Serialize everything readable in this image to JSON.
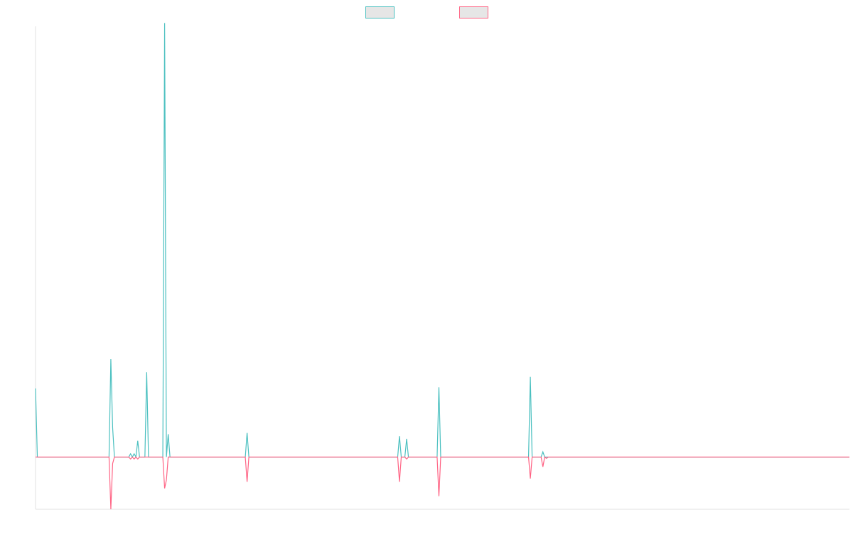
{
  "chart_data": {
    "type": "line",
    "title": "",
    "xlabel": "",
    "ylabel": "",
    "x_count": 228,
    "ylim": [
      -0.8,
      6.6
    ],
    "grid": false,
    "legend": {
      "position": "top-center"
    },
    "colors": {
      "axis": "#e0e0e0",
      "legend_fill": "#e6e6e6"
    },
    "series": [
      {
        "color": "#4bc0c0",
        "points": [
          [
            0,
            1.05
          ],
          [
            0.5,
            0
          ],
          [
            20.5,
            0
          ],
          [
            21,
            1.5
          ],
          [
            21.5,
            0.45
          ],
          [
            22,
            0
          ],
          [
            26,
            0
          ],
          [
            26.5,
            0.05
          ],
          [
            27,
            0
          ],
          [
            27.5,
            0.05
          ],
          [
            28,
            0
          ],
          [
            28.5,
            0.25
          ],
          [
            29,
            0
          ],
          [
            30.5,
            0
          ],
          [
            31,
            1.3
          ],
          [
            31.5,
            0
          ],
          [
            35.5,
            0
          ],
          [
            36,
            6.65
          ],
          [
            36.5,
            0
          ],
          [
            37,
            0.35
          ],
          [
            37.5,
            0
          ],
          [
            58.5,
            0
          ],
          [
            59,
            0.37
          ],
          [
            59.5,
            0
          ],
          [
            101,
            0
          ],
          [
            101.5,
            0.32
          ],
          [
            102,
            0
          ],
          [
            103,
            0
          ],
          [
            103.5,
            0.28
          ],
          [
            104,
            0
          ],
          [
            112,
            0
          ],
          [
            112.5,
            1.07
          ],
          [
            113,
            0
          ],
          [
            137.5,
            0
          ],
          [
            138,
            1.23
          ],
          [
            138.5,
            0
          ],
          [
            141,
            0
          ],
          [
            141.5,
            0.08
          ],
          [
            142,
            0
          ],
          [
            227,
            0
          ]
        ]
      },
      {
        "color": "#ff6384",
        "points": [
          [
            0,
            0
          ],
          [
            20.5,
            0
          ],
          [
            21,
            -0.8
          ],
          [
            21.5,
            -0.1
          ],
          [
            22,
            0
          ],
          [
            26,
            0
          ],
          [
            26.5,
            -0.03
          ],
          [
            27,
            0
          ],
          [
            27.5,
            -0.03
          ],
          [
            28,
            0
          ],
          [
            28.5,
            -0.03
          ],
          [
            29,
            0
          ],
          [
            35.5,
            0
          ],
          [
            36,
            -0.48
          ],
          [
            36.5,
            -0.35
          ],
          [
            37,
            0
          ],
          [
            58.5,
            0
          ],
          [
            59,
            -0.38
          ],
          [
            59.5,
            0
          ],
          [
            101,
            0
          ],
          [
            101.5,
            -0.38
          ],
          [
            102,
            0
          ],
          [
            103,
            0
          ],
          [
            103.5,
            -0.03
          ],
          [
            104,
            0
          ],
          [
            112,
            0
          ],
          [
            112.5,
            -0.6
          ],
          [
            113,
            0
          ],
          [
            137.5,
            0
          ],
          [
            138,
            -0.33
          ],
          [
            138.5,
            0
          ],
          [
            141,
            0
          ],
          [
            141.5,
            -0.15
          ],
          [
            142,
            0
          ],
          [
            142.5,
            -0.02
          ],
          [
            143,
            0
          ],
          [
            227,
            0
          ]
        ]
      }
    ]
  }
}
